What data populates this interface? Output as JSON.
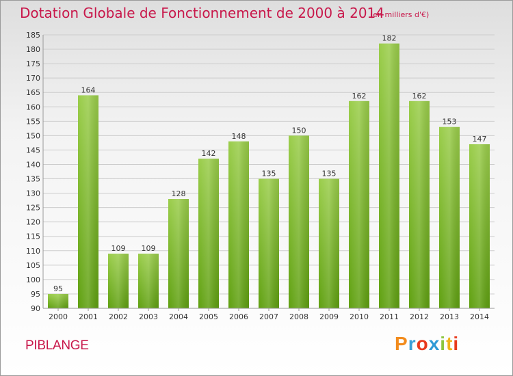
{
  "title": "Dotation Globale de Fonctionnement de 2000 à 2014",
  "subtitle": "(en milliers d'€)",
  "commune": "PIBLANGE",
  "logo": {
    "text": "Proxiti",
    "colors": [
      "#f28c1e",
      "#3aa0d8",
      "#e8391d",
      "#2f9ad6",
      "#8cc63f",
      "#f0b41c",
      "#e8391d"
    ]
  },
  "colors": {
    "title": "#c8174a",
    "bar_light": "#9acd4a",
    "bar_dark": "#5fa010",
    "grid": "#cccccc",
    "axis_text": "#333333"
  },
  "chart_data": {
    "type": "bar",
    "title": "Dotation Globale de Fonctionnement de 2000 à 2014",
    "subtitle": "(en milliers d'€)",
    "xlabel": "",
    "ylabel": "",
    "categories": [
      "2000",
      "2001",
      "2002",
      "2003",
      "2004",
      "2005",
      "2006",
      "2007",
      "2008",
      "2009",
      "2010",
      "2011",
      "2012",
      "2013",
      "2014"
    ],
    "values": [
      95,
      164,
      109,
      109,
      128,
      142,
      148,
      135,
      150,
      135,
      162,
      182,
      162,
      153,
      147
    ],
    "ylim": [
      90,
      185
    ],
    "yticks": [
      90,
      95,
      100,
      105,
      110,
      115,
      120,
      125,
      130,
      135,
      140,
      145,
      150,
      155,
      160,
      165,
      170,
      175,
      180,
      185
    ],
    "grid": true,
    "legend": "none"
  }
}
